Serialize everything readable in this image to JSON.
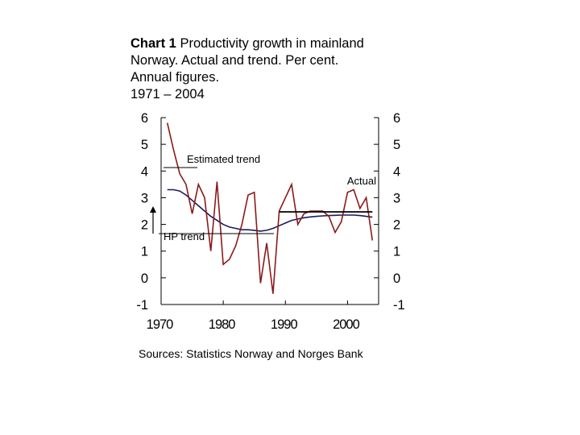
{
  "title": {
    "bold": "Chart 1",
    "lines": [
      "Productivity growth in mainland",
      "Norway. Actual and trend. Per cent.",
      "Annual figures.",
      "1971 – 2004"
    ]
  },
  "source": "Sources: Statistics Norway and Norges Bank",
  "chart_data": {
    "type": "line",
    "title": "Chart 1 Productivity growth in mainland Norway. Actual and trend. Per cent. Annual figures. 1971 – 2004",
    "xlim": [
      1970,
      2005
    ],
    "ylim": [
      -1,
      6
    ],
    "x_ticks": [
      1970,
      1980,
      1990,
      2000
    ],
    "y_ticks": [
      6,
      5,
      4,
      3,
      2,
      1,
      0,
      -1
    ],
    "y_axes": "left and right",
    "grid": false,
    "series": [
      {
        "name": "Actual",
        "color": "#8b1a1a",
        "x": [
          1971,
          1972,
          1973,
          1974,
          1975,
          1976,
          1977,
          1978,
          1979,
          1980,
          1981,
          1982,
          1983,
          1984,
          1985,
          1986,
          1987,
          1988,
          1989,
          1990,
          1991,
          1992,
          1993,
          1994,
          1995,
          1996,
          1997,
          1998,
          1999,
          2000,
          2001,
          2002,
          2003,
          2004
        ],
        "y": [
          5.8,
          4.8,
          3.9,
          3.5,
          2.4,
          3.5,
          3.0,
          1.0,
          3.6,
          0.5,
          0.7,
          1.2,
          2.0,
          3.1,
          3.2,
          -0.2,
          1.3,
          -0.6,
          2.5,
          3.0,
          3.5,
          2.0,
          2.4,
          2.5,
          2.5,
          2.5,
          2.3,
          1.7,
          2.1,
          3.2,
          3.3,
          2.6,
          3.0,
          1.4
        ]
      },
      {
        "name": "Estimated trend",
        "color": "#1a1a5e",
        "x": [
          1971,
          1972,
          1973,
          1974,
          1975,
          1976,
          1977,
          1978,
          1979,
          1980,
          1981,
          1982,
          1983,
          1984,
          1985,
          1986,
          1987,
          1988,
          1989,
          1990,
          1991,
          1992,
          1993,
          1994,
          1995,
          1996,
          1997,
          1998,
          1999,
          2000,
          2001,
          2002,
          2003,
          2004
        ],
        "y": [
          3.3,
          3.3,
          3.25,
          3.1,
          2.9,
          2.7,
          2.5,
          2.3,
          2.15,
          2.0,
          1.9,
          1.85,
          1.8,
          1.8,
          1.78,
          1.75,
          1.78,
          1.85,
          1.95,
          2.05,
          2.15,
          2.2,
          2.25,
          2.28,
          2.3,
          2.32,
          2.33,
          2.34,
          2.35,
          2.35,
          2.35,
          2.33,
          2.3,
          2.27
        ]
      },
      {
        "name": "HP trend",
        "color": "#000000",
        "x": [
          1989,
          2004
        ],
        "y": [
          2.47,
          2.47
        ]
      }
    ],
    "annotations": [
      "Estimated trend",
      "Actual",
      "HP trend"
    ]
  }
}
